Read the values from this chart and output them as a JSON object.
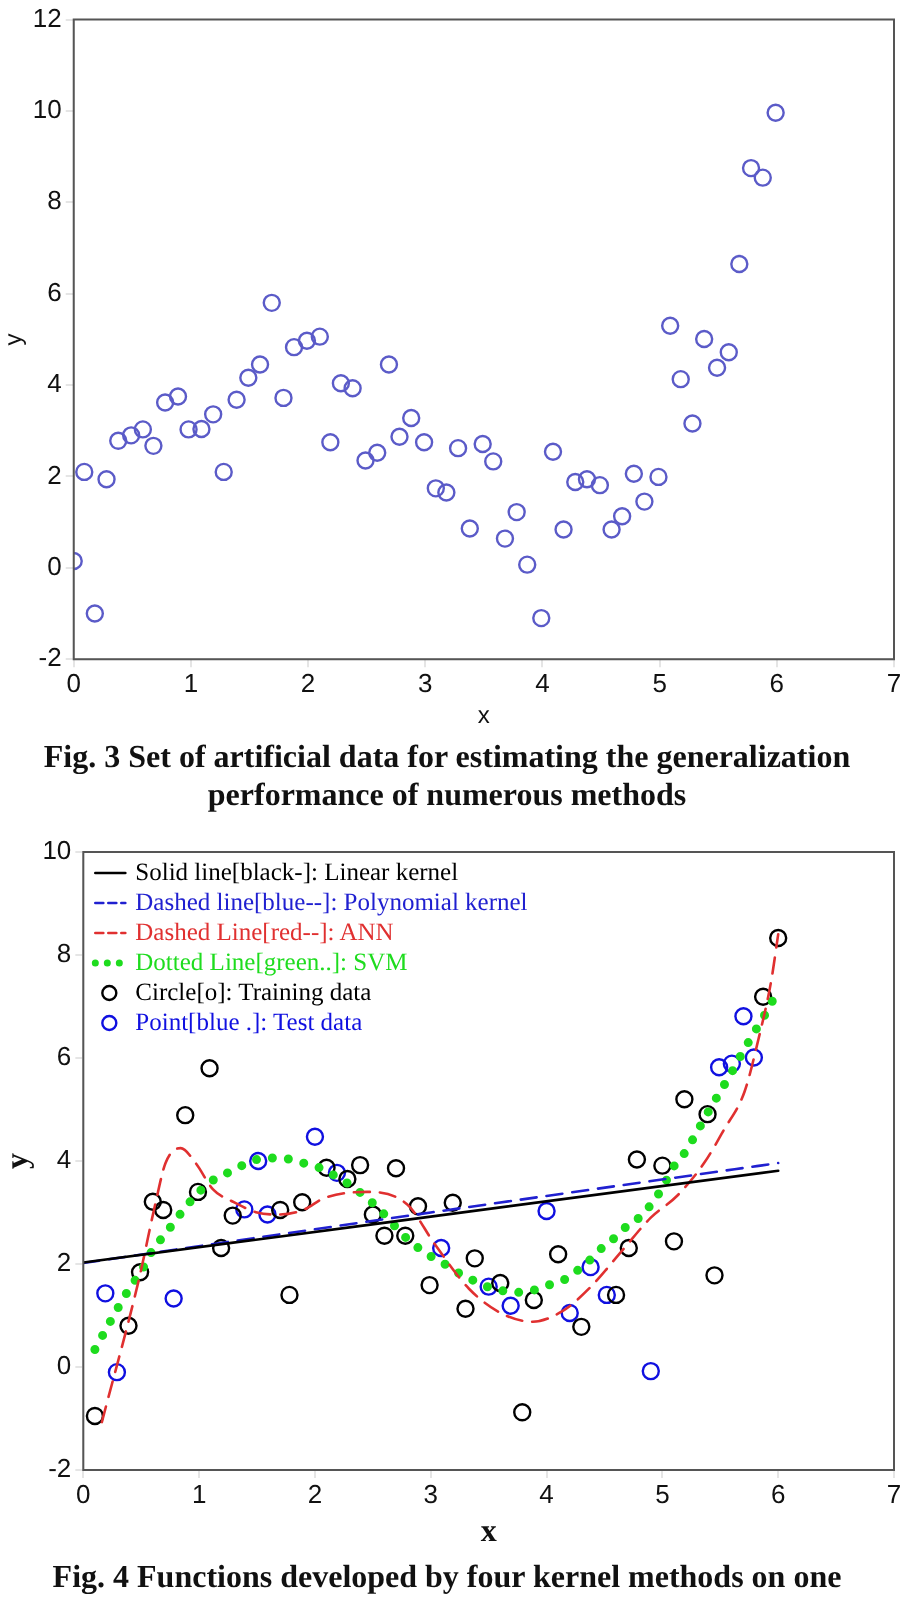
{
  "chart_data": [
    {
      "type": "scatter",
      "title": "Fig. 3 Set of artificial data for estimating the generalization performance of numerous methods",
      "xlabel": "x",
      "ylabel": "y",
      "marker": "circle",
      "color": "#5b5bc8",
      "x": [
        0,
        0.09,
        0.18,
        0.28,
        0.38,
        0.49,
        0.59,
        0.68,
        0.78,
        0.89,
        0.98,
        1.09,
        1.19,
        1.28,
        1.39,
        1.49,
        1.59,
        1.69,
        1.79,
        1.88,
        1.99,
        2.1,
        2.19,
        2.28,
        2.38,
        2.49,
        2.59,
        2.69,
        2.78,
        2.88,
        2.99,
        3.09,
        3.18,
        3.28,
        3.38,
        3.49,
        3.58,
        3.68,
        3.78,
        3.87,
        3.99,
        4.09,
        4.18,
        4.28,
        4.38,
        4.49,
        4.59,
        4.68,
        4.78,
        4.87,
        4.99,
        5.09,
        5.18,
        5.28,
        5.38,
        5.49,
        5.59,
        5.68,
        5.78,
        5.88,
        5.99
      ],
      "values": [
        0.15,
        2.1,
        -1.0,
        1.94,
        2.78,
        2.9,
        3.03,
        2.67,
        3.62,
        3.75,
        3.03,
        3.04,
        3.36,
        2.1,
        3.68,
        4.16,
        4.45,
        5.8,
        3.72,
        4.83,
        4.97,
        5.06,
        2.75,
        4.04,
        3.93,
        2.35,
        2.52,
        4.45,
        2.87,
        3.28,
        2.75,
        1.74,
        1.65,
        2.62,
        0.86,
        2.71,
        2.33,
        0.64,
        1.22,
        0.07,
        -1.1,
        2.54,
        0.84,
        1.88,
        1.94,
        1.81,
        0.84,
        1.13,
        2.06,
        1.45,
        1.99,
        5.3,
        4.13,
        3.16,
        5.01,
        4.38,
        4.72,
        6.65,
        8.75,
        8.54,
        9.96
      ],
      "xlim": [
        0,
        7
      ],
      "xticks": [
        0,
        1,
        2,
        3,
        4,
        5,
        6,
        7
      ],
      "ylim": [
        -2,
        12
      ],
      "yticks": [
        -2,
        0,
        2,
        4,
        6,
        8,
        10,
        12
      ]
    },
    {
      "type": "line",
      "title": "Fig. 4 Functions developed by four kernel methods on one",
      "xlabel": "x",
      "ylabel": "y",
      "legend": "top left",
      "xlim": [
        0,
        7
      ],
      "xticks": [
        0,
        1,
        2,
        3,
        4,
        5,
        6,
        7
      ],
      "ylim": [
        -2,
        10
      ],
      "yticks": [
        -2,
        0,
        2,
        4,
        6,
        8,
        10
      ],
      "series": [
        {
          "name": "Solid line[black-]: Linear kernel",
          "color": "#000000",
          "line_style": "solid",
          "marker": "none",
          "x": [
            0,
            6
          ],
          "values": [
            2.03,
            3.81
          ]
        },
        {
          "name": "Dashed line[blue--]: Polynomial kernel",
          "color": "#2020d0",
          "line_style": "dashed",
          "marker": "none",
          "x": [
            0,
            3,
            6
          ],
          "values": [
            2.02,
            3.0,
            3.96
          ]
        },
        {
          "name": "Dashed Line[red--]: ANN",
          "color": "#e03030",
          "line_style": "dashed",
          "marker": "none",
          "x": [
            0.16,
            0.48,
            0.62,
            0.71,
            0.84,
            0.97,
            1.12,
            1.3,
            1.5,
            1.7,
            1.9,
            2.08,
            2.45,
            2.8,
            3.03,
            3.33,
            3.62,
            3.88,
            4.14,
            4.37,
            4.66,
            4.9,
            5.13,
            5.36,
            5.53,
            5.71,
            5.83,
            5.94,
            6.0
          ],
          "values": [
            -1.07,
            1.7,
            3.15,
            3.96,
            4.25,
            3.96,
            3.45,
            3.2,
            3.0,
            2.96,
            3.05,
            3.28,
            3.4,
            3.15,
            2.4,
            1.52,
            1.03,
            0.88,
            1.09,
            1.53,
            2.28,
            2.9,
            3.33,
            3.96,
            4.6,
            5.35,
            6.37,
            7.5,
            8.4
          ]
        },
        {
          "name": "Dotted Line[green..]: SVM",
          "color": "#1edc1e",
          "line_style": "dotted",
          "marker": "none",
          "x": [
            0.1,
            0.2,
            0.3,
            0.4,
            0.5,
            0.6,
            0.7,
            0.8,
            0.9,
            1.0,
            1.1,
            1.2,
            1.3,
            1.4,
            1.5,
            1.6,
            1.7,
            1.8,
            1.9,
            2.0,
            2.1,
            2.2,
            2.3,
            2.4,
            2.5,
            2.6,
            2.7,
            2.8,
            2.9,
            3.0,
            3.1,
            3.2,
            3.3,
            3.4,
            3.5,
            3.6,
            3.7,
            3.8,
            3.9,
            4.0,
            4.1,
            4.2,
            4.3,
            4.4,
            4.5,
            4.6,
            4.7,
            4.8,
            4.9,
            5.0,
            5.1,
            5.2,
            5.3,
            5.4,
            5.5,
            5.6,
            5.7,
            5.8,
            5.9,
            6.0
          ],
          "values": [
            0.34,
            0.75,
            1.15,
            1.53,
            1.86,
            2.28,
            2.56,
            2.86,
            3.15,
            3.4,
            3.6,
            3.71,
            3.84,
            3.94,
            4.03,
            4.06,
            4.05,
            4.03,
            3.96,
            3.9,
            3.81,
            3.67,
            3.54,
            3.37,
            3.18,
            2.96,
            2.71,
            2.48,
            2.3,
            2.15,
            2.03,
            1.88,
            1.75,
            1.65,
            1.55,
            1.49,
            1.45,
            1.45,
            1.5,
            1.58,
            1.65,
            1.75,
            1.94,
            2.13,
            2.36,
            2.53,
            2.75,
            2.9,
            3.15,
            3.48,
            3.9,
            4.18,
            4.57,
            4.97,
            5.35,
            5.73,
            6.14,
            6.52,
            6.9,
            7.32
          ]
        },
        {
          "name": "Circle[o]: Training data",
          "type": "scatter",
          "color": "#000000",
          "marker": "circle",
          "x": [
            0.1,
            0.39,
            0.49,
            0.6,
            0.69,
            0.88,
            0.99,
            1.09,
            1.19,
            1.29,
            1.7,
            1.78,
            1.89,
            2.1,
            2.28,
            2.39,
            2.5,
            2.6,
            2.7,
            2.78,
            2.89,
            2.99,
            3.19,
            3.3,
            3.38,
            3.6,
            3.79,
            3.89,
            4.1,
            4.3,
            4.6,
            4.71,
            4.78,
            5.0,
            5.1,
            5.19,
            5.39,
            5.45,
            5.87,
            6.0
          ],
          "values": [
            -0.95,
            0.8,
            1.84,
            3.21,
            3.05,
            4.89,
            3.4,
            5.8,
            2.31,
            2.94,
            3.05,
            1.4,
            3.2,
            3.87,
            3.65,
            3.92,
            2.96,
            2.55,
            3.86,
            2.55,
            3.12,
            1.59,
            3.19,
            1.13,
            2.11,
            1.63,
            -0.88,
            1.3,
            2.19,
            0.78,
            1.4,
            2.31,
            4.03,
            3.91,
            2.44,
            5.2,
            4.91,
            1.78,
            7.19,
            8.33
          ]
        },
        {
          "name": "Point[blue .]: Test data",
          "type": "scatter",
          "color": "#1010e0",
          "marker": "circle",
          "x": [
            0.19,
            0.29,
            0.78,
            1.39,
            1.51,
            1.59,
            2.0,
            2.19,
            3.09,
            3.5,
            3.69,
            4.0,
            4.2,
            4.38,
            4.52,
            4.9,
            5.49,
            5.6,
            5.7,
            5.79
          ],
          "values": [
            1.43,
            -0.1,
            1.33,
            3.06,
            4.0,
            2.96,
            4.47,
            3.77,
            2.31,
            1.56,
            1.19,
            3.03,
            1.05,
            1.94,
            1.4,
            -0.08,
            5.82,
            5.89,
            6.81,
            6.01
          ]
        }
      ]
    }
  ]
}
